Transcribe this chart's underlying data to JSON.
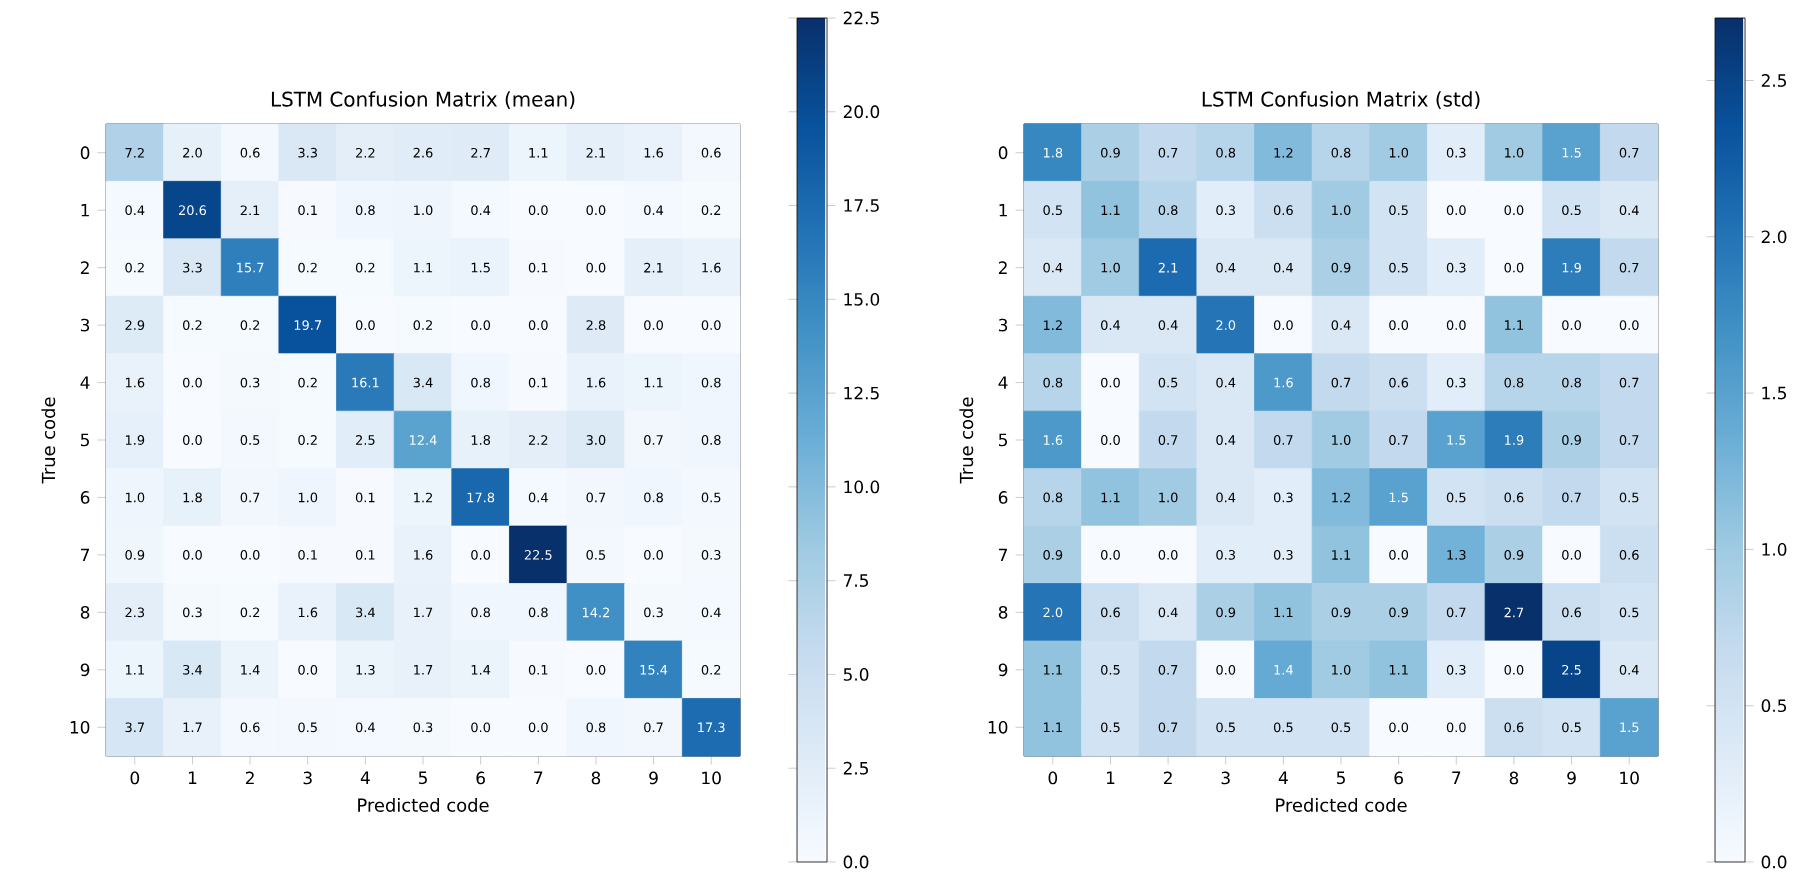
{
  "chart_data": [
    {
      "type": "heatmap",
      "title": "LSTM Confusion Matrix (mean)",
      "xlabel": "Predicted code",
      "ylabel": "True code",
      "categories": [
        "0",
        "1",
        "2",
        "3",
        "4",
        "5",
        "6",
        "7",
        "8",
        "9",
        "10"
      ],
      "y_categories": [
        "0",
        "1",
        "2",
        "3",
        "4",
        "5",
        "6",
        "7",
        "8",
        "9",
        "10"
      ],
      "cells": [
        [
          7.2,
          2,
          0.6,
          3.3,
          2.2,
          2.6,
          2.7,
          1.1,
          2.1,
          1.6,
          0.6
        ],
        [
          0.4,
          20.6,
          2.1,
          0.1,
          0.8,
          1,
          0.4,
          0,
          0,
          0.4,
          0.2
        ],
        [
          0.2,
          3.3,
          15.7,
          0.2,
          0.2,
          1.1,
          1.5,
          0.1,
          0,
          2.1,
          1.6
        ],
        [
          2.9,
          0.2,
          0.2,
          19.7,
          0,
          0.2,
          0,
          0,
          2.8,
          0,
          0
        ],
        [
          1.6,
          0,
          0.3,
          0.2,
          16.1,
          3.4,
          0.8,
          0.1,
          1.6,
          1.1,
          0.8
        ],
        [
          1.9,
          0,
          0.5,
          0.2,
          2.5,
          12.4,
          1.8,
          2.2,
          3,
          0.7,
          0.8
        ],
        [
          1,
          1.8,
          0.7,
          1,
          0.1,
          1.2,
          17.8,
          0.4,
          0.7,
          0.8,
          0.5
        ],
        [
          0.9,
          0,
          0,
          0.1,
          0.1,
          1.6,
          0,
          22.5,
          0.5,
          0,
          0.3
        ],
        [
          2.3,
          0.3,
          0.2,
          1.6,
          3.4,
          1.7,
          0.8,
          0.8,
          14.2,
          0.3,
          0.4
        ],
        [
          1.1,
          3.4,
          1.4,
          0,
          1.3,
          1.7,
          1.4,
          0.1,
          0,
          15.4,
          0.2
        ],
        [
          3.7,
          1.7,
          0.6,
          0.5,
          0.4,
          0.3,
          0,
          0,
          0.8,
          0.7,
          17.3
        ]
      ],
      "cell_labels": [
        [
          "7.2",
          "2.0",
          "0.6",
          "3.3",
          "2.2",
          "2.6",
          "2.7",
          "1.1",
          "2.1",
          "1.6",
          "0.6"
        ],
        [
          "0.4",
          "20.6",
          "2.1",
          "0.1",
          "0.8",
          "1.0",
          "0.4",
          "0.0",
          "0.0",
          "0.4",
          "0.2"
        ],
        [
          "0.2",
          "3.3",
          "15.7",
          "0.2",
          "0.2",
          "1.1",
          "1.5",
          "0.1",
          "0.0",
          "2.1",
          "1.6"
        ],
        [
          "2.9",
          "0.2",
          "0.2",
          "19.7",
          "0.0",
          "0.2",
          "0.0",
          "0.0",
          "2.8",
          "0.0",
          "0.0"
        ],
        [
          "1.6",
          "0.0",
          "0.3",
          "0.2",
          "16.1",
          "3.4",
          "0.8",
          "0.1",
          "1.6",
          "1.1",
          "0.8"
        ],
        [
          "1.9",
          "0.0",
          "0.5",
          "0.2",
          "2.5",
          "12.4",
          "1.8",
          "2.2",
          "3.0",
          "0.7",
          "0.8"
        ],
        [
          "1.0",
          "1.8",
          "0.7",
          "1.0",
          "0.1",
          "1.2",
          "17.8",
          "0.4",
          "0.7",
          "0.8",
          "0.5"
        ],
        [
          "0.9",
          "0.0",
          "0.0",
          "0.1",
          "0.1",
          "1.6",
          "0.0",
          "22.5",
          "0.5",
          "0.0",
          "0.3"
        ],
        [
          "2.3",
          "0.3",
          "0.2",
          "1.6",
          "3.4",
          "1.7",
          "0.8",
          "0.8",
          "14.2",
          "0.3",
          "0.4"
        ],
        [
          "1.1",
          "3.4",
          "1.4",
          "0.0",
          "1.3",
          "1.7",
          "1.4",
          "0.1",
          "0.0",
          "15.4",
          "0.2"
        ],
        [
          "3.7",
          "1.7",
          "0.6",
          "0.5",
          "0.4",
          "0.3",
          "0.0",
          "0.0",
          "0.8",
          "0.7",
          "17.3"
        ]
      ],
      "clim": [
        0,
        22.5
      ],
      "cticks": [
        {
          "value": 0,
          "label": "0.0"
        },
        {
          "value": 2.5,
          "label": "2.5"
        },
        {
          "value": 5,
          "label": "5.0"
        },
        {
          "value": 7.5,
          "label": "7.5"
        },
        {
          "value": 10,
          "label": "10.0"
        },
        {
          "value": 12.5,
          "label": "12.5"
        },
        {
          "value": 15,
          "label": "15.0"
        },
        {
          "value": 17.5,
          "label": "17.5"
        },
        {
          "value": 20,
          "label": "20.0"
        },
        {
          "value": 22.5,
          "label": "22.5"
        }
      ],
      "data_labels": true
    },
    {
      "type": "heatmap",
      "title": "LSTM Confusion Matrix (std)",
      "xlabel": "Predicted code",
      "ylabel": "True code",
      "categories": [
        "0",
        "1",
        "2",
        "3",
        "4",
        "5",
        "6",
        "7",
        "8",
        "9",
        "10"
      ],
      "y_categories": [
        "0",
        "1",
        "2",
        "3",
        "4",
        "5",
        "6",
        "7",
        "8",
        "9",
        "10"
      ],
      "cells": [
        [
          1.8,
          0.9,
          0.7,
          0.8,
          1.2,
          0.8,
          1,
          0.3,
          1,
          1.5,
          0.7
        ],
        [
          0.5,
          1.1,
          0.8,
          0.3,
          0.6,
          1,
          0.5,
          0,
          0,
          0.5,
          0.4
        ],
        [
          0.4,
          1,
          2.1,
          0.4,
          0.4,
          0.9,
          0.5,
          0.3,
          0,
          1.9,
          0.7
        ],
        [
          1.2,
          0.4,
          0.4,
          2,
          0,
          0.4,
          0,
          0,
          1.1,
          0,
          0
        ],
        [
          0.8,
          0,
          0.5,
          0.4,
          1.6,
          0.7,
          0.6,
          0.3,
          0.8,
          0.8,
          0.7
        ],
        [
          1.6,
          0,
          0.7,
          0.4,
          0.7,
          1,
          0.7,
          1.5,
          1.9,
          0.9,
          0.7
        ],
        [
          0.8,
          1.1,
          1,
          0.4,
          0.3,
          1.2,
          1.5,
          0.5,
          0.6,
          0.7,
          0.5
        ],
        [
          0.9,
          0,
          0,
          0.3,
          0.3,
          1.1,
          0,
          1.3,
          0.9,
          0,
          0.6
        ],
        [
          2,
          0.6,
          0.4,
          0.9,
          1.1,
          0.9,
          0.9,
          0.7,
          2.7,
          0.6,
          0.5
        ],
        [
          1.1,
          0.5,
          0.7,
          0,
          1.4,
          1,
          1.1,
          0.3,
          0,
          2.5,
          0.4
        ],
        [
          1.1,
          0.5,
          0.7,
          0.5,
          0.5,
          0.5,
          0,
          0,
          0.6,
          0.5,
          1.5
        ]
      ],
      "cell_labels": [
        [
          "1.8",
          "0.9",
          "0.7",
          "0.8",
          "1.2",
          "0.8",
          "1.0",
          "0.3",
          "1.0",
          "1.5",
          "0.7"
        ],
        [
          "0.5",
          "1.1",
          "0.8",
          "0.3",
          "0.6",
          "1.0",
          "0.5",
          "0.0",
          "0.0",
          "0.5",
          "0.4"
        ],
        [
          "0.4",
          "1.0",
          "2.1",
          "0.4",
          "0.4",
          "0.9",
          "0.5",
          "0.3",
          "0.0",
          "1.9",
          "0.7"
        ],
        [
          "1.2",
          "0.4",
          "0.4",
          "2.0",
          "0.0",
          "0.4",
          "0.0",
          "0.0",
          "1.1",
          "0.0",
          "0.0"
        ],
        [
          "0.8",
          "0.0",
          "0.5",
          "0.4",
          "1.6",
          "0.7",
          "0.6",
          "0.3",
          "0.8",
          "0.8",
          "0.7"
        ],
        [
          "1.6",
          "0.0",
          "0.7",
          "0.4",
          "0.7",
          "1.0",
          "0.7",
          "1.5",
          "1.9",
          "0.9",
          "0.7"
        ],
        [
          "0.8",
          "1.1",
          "1.0",
          "0.4",
          "0.3",
          "1.2",
          "1.5",
          "0.5",
          "0.6",
          "0.7",
          "0.5"
        ],
        [
          "0.9",
          "0.0",
          "0.0",
          "0.3",
          "0.3",
          "1.1",
          "0.0",
          "1.3",
          "0.9",
          "0.0",
          "0.6"
        ],
        [
          "2.0",
          "0.6",
          "0.4",
          "0.9",
          "1.1",
          "0.9",
          "0.9",
          "0.7",
          "2.7",
          "0.6",
          "0.5"
        ],
        [
          "1.1",
          "0.5",
          "0.7",
          "0.0",
          "1.4",
          "1.0",
          "1.1",
          "0.3",
          "0.0",
          "2.5",
          "0.4"
        ],
        [
          "1.1",
          "0.5",
          "0.7",
          "0.5",
          "0.5",
          "0.5",
          "0.0",
          "0.0",
          "0.6",
          "0.5",
          "1.5"
        ]
      ],
      "clim": [
        0,
        2.7
      ],
      "cticks": [
        {
          "value": 0,
          "label": "0.0"
        },
        {
          "value": 0.5,
          "label": "0.5"
        },
        {
          "value": 1,
          "label": "1.0"
        },
        {
          "value": 1.5,
          "label": "1.5"
        },
        {
          "value": 2,
          "label": "2.0"
        },
        {
          "value": 2.5,
          "label": "2.5"
        }
      ],
      "data_labels": true
    }
  ]
}
